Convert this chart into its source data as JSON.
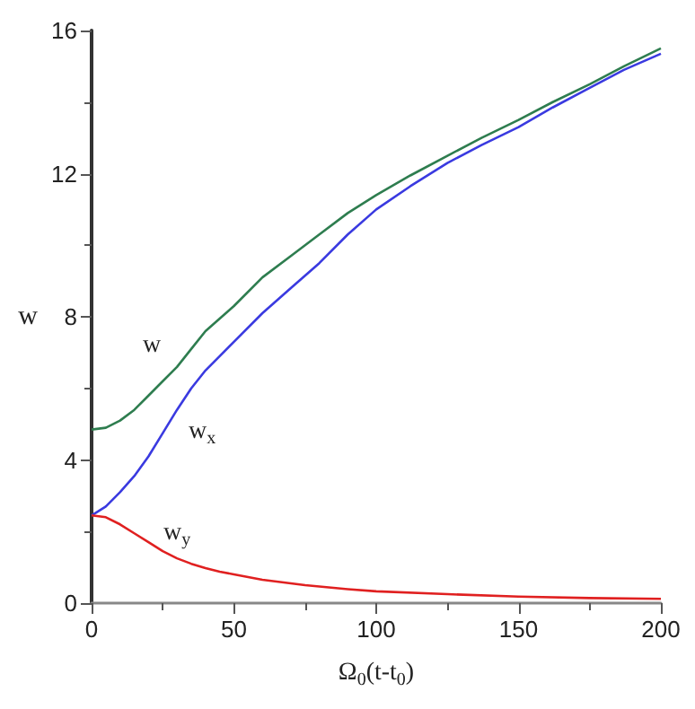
{
  "chart_data": {
    "type": "line",
    "xlabel": "Ω$_{0}$(t-t$_{0}$)",
    "ylabel": "w",
    "xlim": [
      0,
      200
    ],
    "xticks": [
      0,
      50,
      100,
      150,
      200
    ],
    "ylim": [
      0,
      16
    ],
    "yticks": [
      0,
      4,
      8,
      12,
      16
    ],
    "marker": "none",
    "line_style": "solid",
    "series": [
      {
        "name": "w",
        "color": "#2e7d4f",
        "x": [
          0,
          5,
          10,
          15,
          20,
          25,
          30,
          35,
          40,
          45,
          50,
          60,
          70,
          80,
          90,
          100,
          112,
          125,
          137,
          150,
          162,
          175,
          187,
          200
        ],
        "values": [
          4.85,
          4.9,
          5.1,
          5.4,
          5.8,
          6.2,
          6.6,
          7.1,
          7.6,
          7.95,
          8.3,
          9.1,
          9.7,
          10.3,
          10.9,
          11.4,
          11.95,
          12.5,
          13.0,
          13.5,
          14.0,
          14.5,
          15.0,
          15.5
        ]
      },
      {
        "name": "w$_{x}$",
        "color": "#3a3ae0",
        "x": [
          0,
          5,
          10,
          15,
          20,
          25,
          30,
          35,
          40,
          45,
          50,
          60,
          70,
          80,
          90,
          100,
          112,
          125,
          137,
          150,
          162,
          175,
          187,
          200
        ],
        "values": [
          2.45,
          2.7,
          3.1,
          3.55,
          4.1,
          4.75,
          5.4,
          6.0,
          6.5,
          6.9,
          7.3,
          8.1,
          8.8,
          9.5,
          10.3,
          11.0,
          11.65,
          12.3,
          12.8,
          13.3,
          13.85,
          14.4,
          14.9,
          15.35
        ]
      },
      {
        "name": "w$_{y}$",
        "color": "#e02020",
        "x": [
          0,
          5,
          10,
          15,
          20,
          25,
          30,
          35,
          40,
          45,
          50,
          60,
          75,
          90,
          100,
          125,
          150,
          175,
          200
        ],
        "values": [
          2.45,
          2.4,
          2.2,
          1.95,
          1.7,
          1.45,
          1.25,
          1.1,
          0.98,
          0.88,
          0.8,
          0.65,
          0.5,
          0.39,
          0.33,
          0.25,
          0.18,
          0.14,
          0.12
        ]
      }
    ]
  }
}
